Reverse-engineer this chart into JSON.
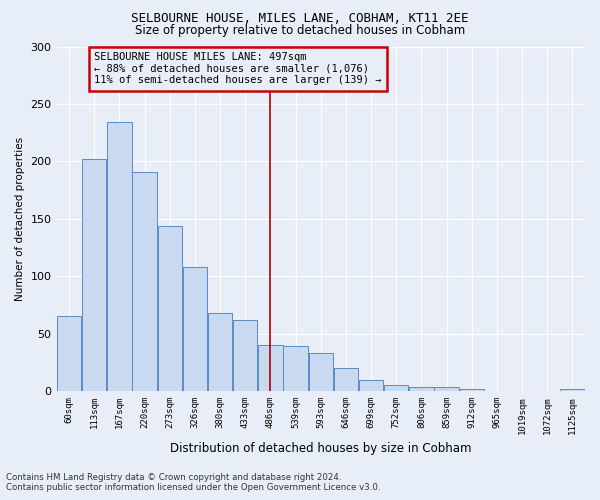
{
  "title": "SELBOURNE HOUSE, MILES LANE, COBHAM, KT11 2EE",
  "subtitle": "Size of property relative to detached houses in Cobham",
  "xlabel": "Distribution of detached houses by size in Cobham",
  "ylabel": "Number of detached properties",
  "categories": [
    "60sqm",
    "113sqm",
    "167sqm",
    "220sqm",
    "273sqm",
    "326sqm",
    "380sqm",
    "433sqm",
    "486sqm",
    "539sqm",
    "593sqm",
    "646sqm",
    "699sqm",
    "752sqm",
    "806sqm",
    "859sqm",
    "912sqm",
    "965sqm",
    "1019sqm",
    "1072sqm",
    "1125sqm"
  ],
  "values": [
    65,
    202,
    234,
    191,
    144,
    108,
    68,
    62,
    40,
    39,
    33,
    20,
    10,
    5,
    4,
    4,
    2,
    0,
    0,
    0,
    2
  ],
  "bar_color": "#c9d9ef",
  "bar_edge_color": "#5b8ac5",
  "vline_x_index": 8,
  "vline_color": "#aa0000",
  "annotation_text": "SELBOURNE HOUSE MILES LANE: 497sqm\n← 88% of detached houses are smaller (1,076)\n11% of semi-detached houses are larger (139) →",
  "annotation_box_color": "#cc0000",
  "ylim": [
    0,
    300
  ],
  "yticks": [
    0,
    50,
    100,
    150,
    200,
    250,
    300
  ],
  "background_color": "#e8eef8",
  "grid_color": "#ffffff",
  "footer_line1": "Contains HM Land Registry data © Crown copyright and database right 2024.",
  "footer_line2": "Contains public sector information licensed under the Open Government Licence v3.0."
}
